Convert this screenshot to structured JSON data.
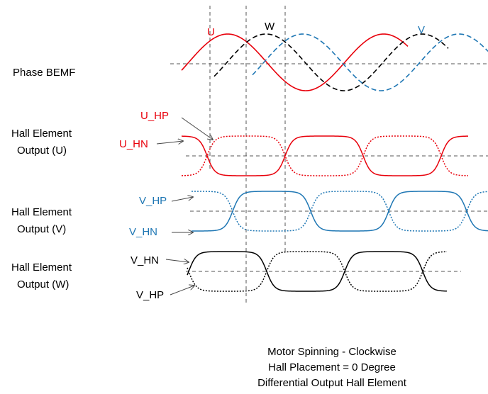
{
  "colors": {
    "u": "#e8000b",
    "v": "#1f77b4",
    "w": "#000000",
    "guide": "#555555",
    "arrow": "#444444"
  },
  "phase": {
    "label": "Phase BEMF",
    "u_label": "U",
    "v_label": "V",
    "w_label": "W"
  },
  "hall_u": {
    "label_line1": "Hall Element",
    "label_line2": "Output (U)",
    "hp_label": "U_HP",
    "hn_label": "U_HN"
  },
  "hall_v": {
    "label_line1": "Hall Element",
    "label_line2": "Output (V)",
    "hp_label": "V_HP",
    "hn_label": "V_HN"
  },
  "hall_w": {
    "label_line1": "Hall Element",
    "label_line2": "Output (W)",
    "hn_label": "V_HN",
    "hp_label": "V_HP"
  },
  "caption": {
    "line1": "Motor Spinning - Clockwise",
    "line2": "Hall Placement = 0 Degree",
    "line3": "Differential Output Hall Element"
  }
}
